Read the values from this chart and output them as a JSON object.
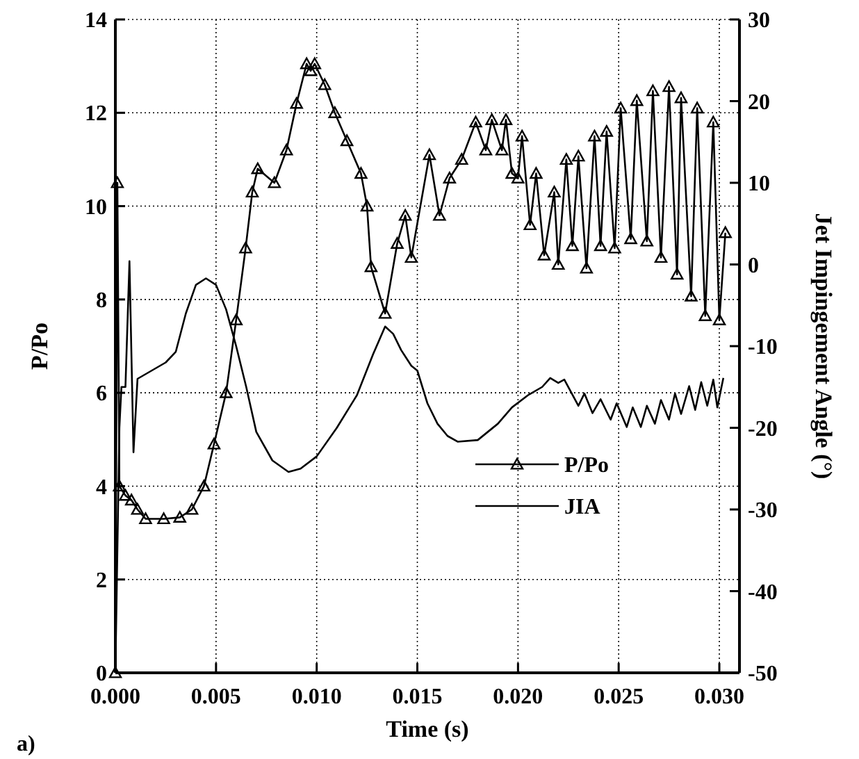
{
  "chart_data": {
    "type": "line",
    "xlabel": "Time (s)",
    "ylabel": "P/Po",
    "y2label": "Jet Impingement Angle (°)",
    "annotations": [
      "a)"
    ],
    "xlim": [
      0,
      0.031
    ],
    "xticks": [
      {
        "value": 0,
        "label": "0.000"
      },
      0.005,
      {
        "value": 0.01,
        "label": "0.010"
      },
      0.015,
      {
        "value": 0.02,
        "label": "0.020"
      },
      0.025,
      {
        "value": 0.03,
        "label": "0.030"
      }
    ],
    "ylim": [
      0,
      14
    ],
    "yticks": [
      0,
      2,
      4,
      6,
      8,
      10,
      12,
      14
    ],
    "y2lim": [
      -50,
      30
    ],
    "y2ticks": [
      -50,
      -40,
      -30,
      -20,
      -10,
      0,
      10,
      20,
      30
    ],
    "grid": true,
    "legend": "bottom right",
    "line_style": "solid",
    "series": [
      {
        "name": "P/Po",
        "color": "#000000",
        "marker": "triangle",
        "x": [
          0,
          0.0001,
          0.0002,
          0.0005,
          0.0008,
          0.0011,
          0.0015,
          0.0024,
          0.0032,
          0.0038,
          0.0044,
          0.0049,
          0.0055,
          0.006,
          0.00647,
          0.0068,
          0.00707,
          0.0079,
          0.0085,
          0.009,
          0.0095,
          0.0097,
          0.0099,
          0.0104,
          0.0109,
          0.0115,
          0.0122,
          0.0125,
          0.0127,
          0.0134,
          0.014,
          0.0144,
          0.0147,
          0.0156,
          0.0161,
          0.0166,
          0.0172,
          0.0179,
          0.0184,
          0.0187,
          0.0192,
          0.0194,
          0.0197,
          0.02,
          0.0202,
          0.0206,
          0.0209,
          0.0213,
          0.0218,
          0.022,
          0.0224,
          0.0227,
          0.023,
          0.0234,
          0.0238,
          0.0241,
          0.0244,
          0.0248,
          0.0251,
          0.0256,
          0.0259,
          0.0264,
          0.0267,
          0.0271,
          0.0275,
          0.0279,
          0.0281,
          0.0286,
          0.0289,
          0.0293,
          0.0297,
          0.03,
          0.0303
        ],
        "values": [
          0,
          10.5,
          4.0,
          3.8,
          3.7,
          3.5,
          3.3,
          3.3,
          3.33,
          3.5,
          4.0,
          4.9,
          6.0,
          7.56,
          9.1,
          10.3,
          10.8,
          10.5,
          11.2,
          12.2,
          13.05,
          12.9,
          13.05,
          12.6,
          12.0,
          11.4,
          10.7,
          10.0,
          8.7,
          7.7,
          9.2,
          9.8,
          8.9,
          11.1,
          9.8,
          10.6,
          11.0,
          11.8,
          11.2,
          11.85,
          11.2,
          11.85,
          10.7,
          10.6,
          11.5,
          9.6,
          10.7,
          8.95,
          10.3,
          8.75,
          11.0,
          9.15,
          11.07,
          8.67,
          11.5,
          9.15,
          11.6,
          9.1,
          12.1,
          9.3,
          12.26,
          9.25,
          12.47,
          8.9,
          12.56,
          8.54,
          12.32,
          8.07,
          12.1,
          7.65,
          11.8,
          7.56,
          9.43
        ]
      },
      {
        "name": "JIA",
        "color": "#000000",
        "marker": "none",
        "axis": "y2",
        "x": [
          0,
          0.0002,
          0.0003,
          0.0005,
          0.0007,
          0.0009,
          0.0011,
          0.0018,
          0.0025,
          0.003,
          0.0035,
          0.004,
          0.0045,
          0.005,
          0.0055,
          0.006,
          0.0065,
          0.007,
          0.0078,
          0.0086,
          0.0092,
          0.01,
          0.011,
          0.012,
          0.0128,
          0.0134,
          0.0138,
          0.0142,
          0.0147,
          0.015,
          0.0155,
          0.016,
          0.0165,
          0.017,
          0.018,
          0.019,
          0.0197,
          0.0205,
          0.0212,
          0.0216,
          0.022,
          0.0223,
          0.023,
          0.0233,
          0.0237,
          0.0241,
          0.0246,
          0.0249,
          0.0254,
          0.0257,
          0.0261,
          0.0264,
          0.0268,
          0.0271,
          0.0275,
          0.0278,
          0.0281,
          0.0285,
          0.0288,
          0.0291,
          0.0294,
          0.0297,
          0.0299,
          0.0302
        ],
        "values": [
          -50,
          -20,
          -15,
          -15,
          0.4,
          -23,
          -14,
          -13,
          -12,
          -10.7,
          -6,
          -2.5,
          -1.7,
          -2.5,
          -5.5,
          -10,
          -15,
          -20.5,
          -24,
          -25.4,
          -25,
          -23.5,
          -20,
          -16,
          -11,
          -7.6,
          -8.5,
          -10.5,
          -12.4,
          -13,
          -17,
          -19.5,
          -21,
          -21.7,
          -21.5,
          -19.5,
          -17.5,
          -16,
          -15,
          -13.9,
          -14.5,
          -14.1,
          -17.3,
          -15.8,
          -18.2,
          -16.5,
          -19,
          -17,
          -19.9,
          -17.5,
          -19.9,
          -17.3,
          -19.5,
          -16.6,
          -19,
          -15.8,
          -18.3,
          -14.9,
          -17.8,
          -14.4,
          -17.3,
          -14.1,
          -17.5,
          -13.9
        ]
      }
    ]
  }
}
